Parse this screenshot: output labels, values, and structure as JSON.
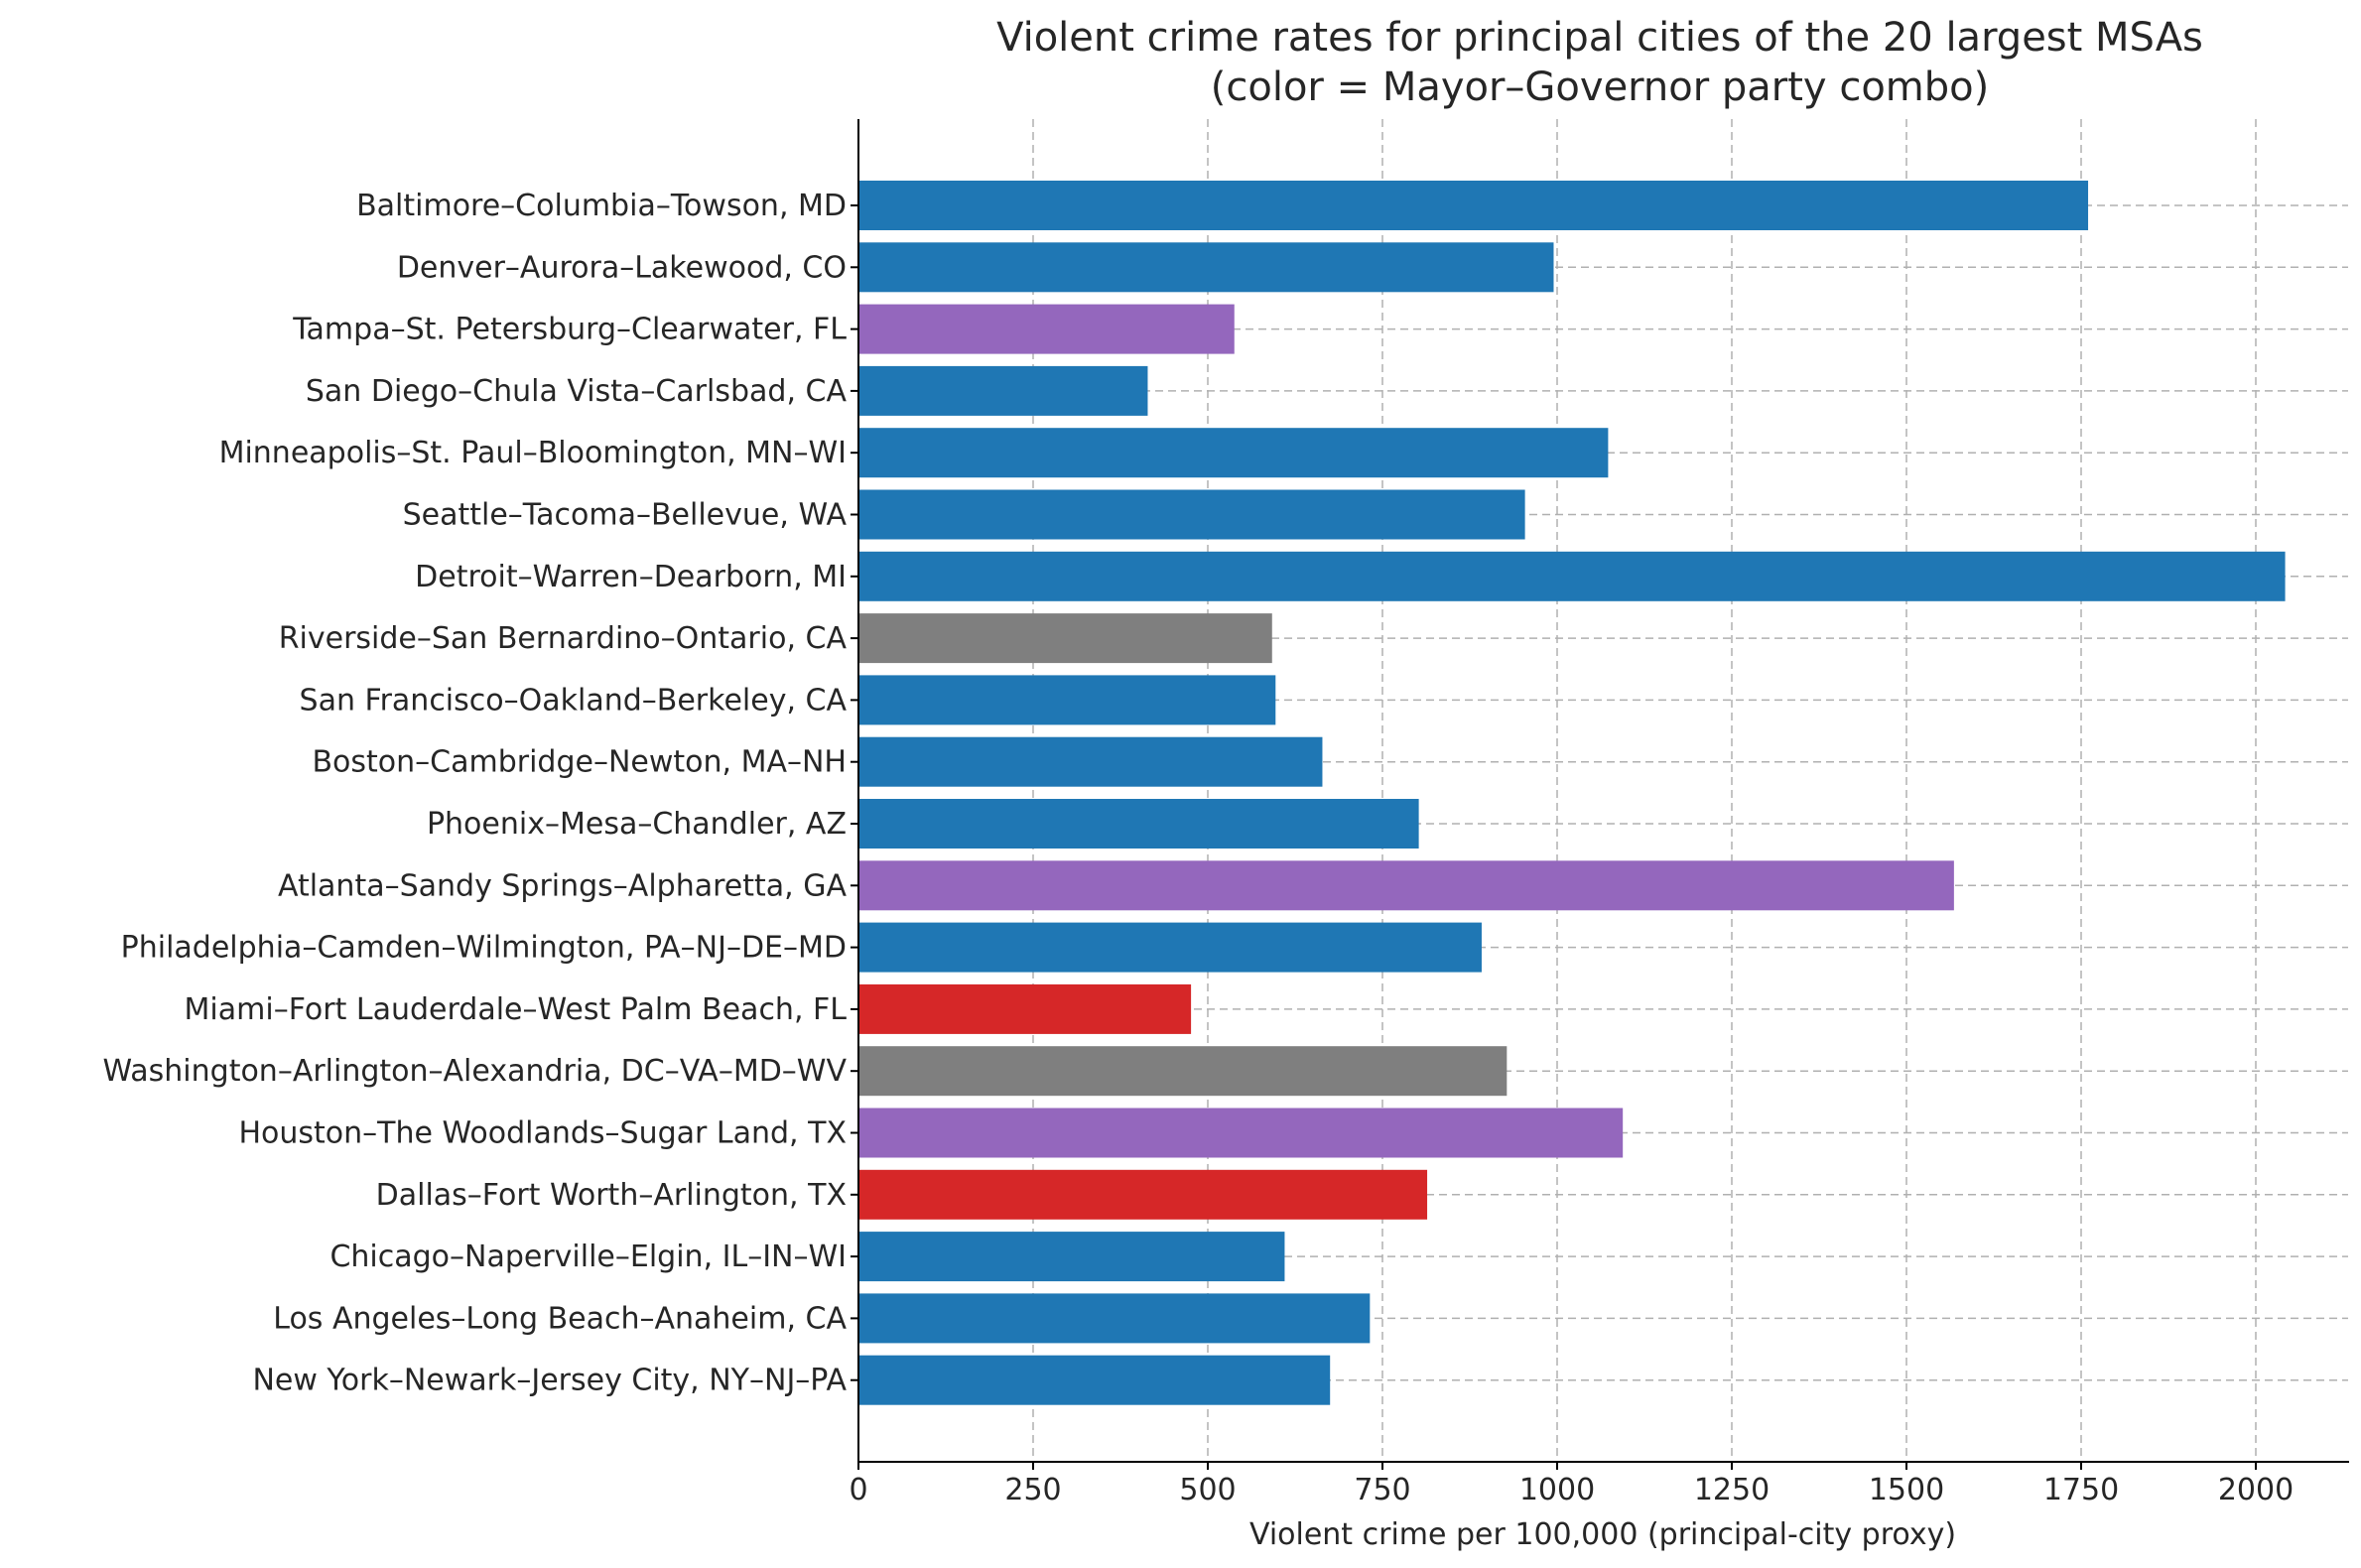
{
  "chart_data": {
    "type": "bar",
    "orientation": "horizontal",
    "title": "Violent crime rates for principal cities of the 20 largest MSAs",
    "subtitle": "(color = Mayor–Governor party combo)",
    "xlabel": "Violent crime per 100,000 (principal-city proxy)",
    "ylabel": "",
    "xlim": [
      0,
      2150
    ],
    "xticks": [
      0,
      250,
      500,
      750,
      1000,
      1250,
      1500,
      1750,
      2000
    ],
    "grid": true,
    "categories": [
      "Baltimore–Columbia–Towson, MD",
      "Denver–Aurora–Lakewood, CO",
      "Tampa–St. Petersburg–Clearwater, FL",
      "San Diego–Chula Vista–Carlsbad, CA",
      "Minneapolis–St. Paul–Bloomington, MN–WI",
      "Seattle–Tacoma–Bellevue, WA",
      "Detroit–Warren–Dearborn, MI",
      "Riverside–San Bernardino–Ontario, CA",
      "San Francisco–Oakland–Berkeley, CA",
      "Boston–Cambridge–Newton, MA–NH",
      "Phoenix–Mesa–Chandler, AZ",
      "Atlanta–Sandy Springs–Alpharetta, GA",
      "Philadelphia–Camden–Wilmington, PA–NJ–DE–MD",
      "Miami–Fort Lauderdale–West Palm Beach, FL",
      "Washington–Arlington–Alexandria, DC–VA–MD–WV",
      "Houston–The Woodlands–Sugar Land, TX",
      "Dallas–Fort Worth–Arlington, TX",
      "Chicago–Naperville–Elgin, IL–IN–WI",
      "Los Angeles–Long Beach–Anaheim, CA",
      "New York–Newark–Jersey City, NY–NJ–PA"
    ],
    "values": [
      1760,
      995,
      538,
      414,
      1073,
      954,
      2042,
      592,
      597,
      664,
      802,
      1568,
      892,
      476,
      928,
      1094,
      814,
      610,
      732,
      675
    ],
    "bar_colors": [
      "#1f77b4",
      "#1f77b4",
      "#9467bd",
      "#1f77b4",
      "#1f77b4",
      "#1f77b4",
      "#1f77b4",
      "#7f7f7f",
      "#1f77b4",
      "#1f77b4",
      "#1f77b4",
      "#9467bd",
      "#1f77b4",
      "#d62728",
      "#7f7f7f",
      "#9467bd",
      "#d62728",
      "#1f77b4",
      "#1f77b4",
      "#1f77b4"
    ]
  }
}
